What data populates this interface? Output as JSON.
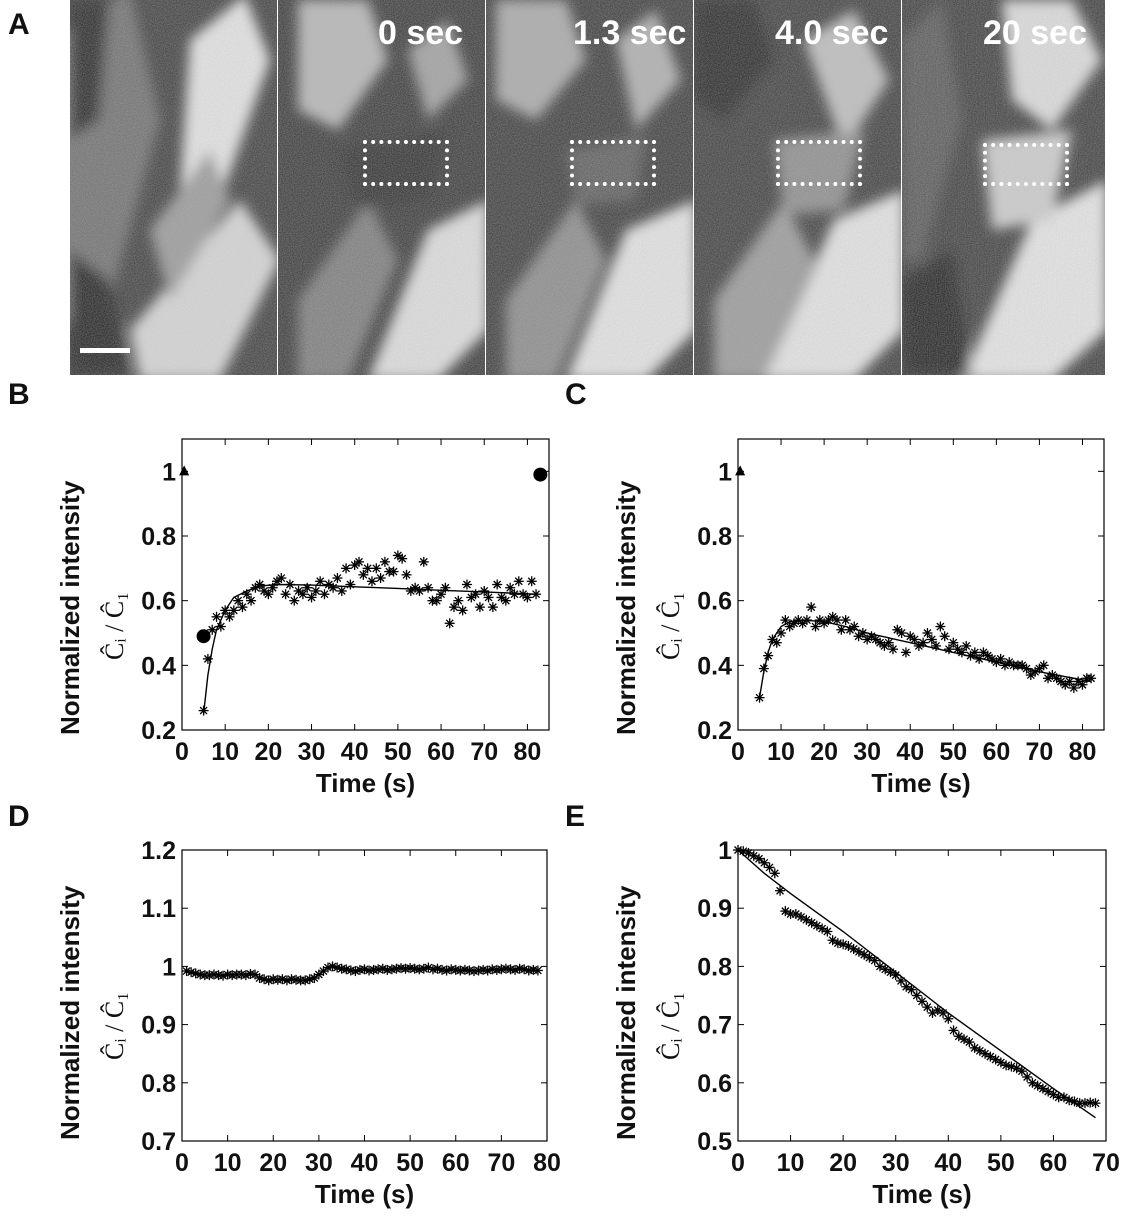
{
  "panels": {
    "a": "A",
    "b": "B",
    "c": "C",
    "d": "D",
    "e": "E"
  },
  "micrograph": {
    "time_labels": [
      "0 sec",
      "1.3 sec",
      "4.0 sec",
      "20 sec"
    ]
  },
  "common": {
    "xlabel": "Time (s)",
    "ylabel": "Normalized intensity",
    "yfraction": "Ĉᵢ / Ĉ₁"
  },
  "chart_data": [
    {
      "panel": "B",
      "type": "scatter",
      "xlim": [
        0,
        85
      ],
      "ylim": [
        0.2,
        1.1
      ],
      "xticks": [
        0,
        10,
        20,
        30,
        40,
        50,
        60,
        70,
        80
      ],
      "yticks": [
        0.2,
        0.4,
        0.6,
        0.8,
        1
      ],
      "markers": {
        "triangle": [
          [
            0.5,
            1.0
          ]
        ],
        "circle": [
          [
            5,
            0.49
          ],
          [
            83,
            0.99
          ]
        ]
      },
      "points": [
        [
          5,
          0.26
        ],
        [
          6,
          0.42
        ],
        [
          7,
          0.51
        ],
        [
          8,
          0.55
        ],
        [
          9,
          0.52
        ],
        [
          10,
          0.57
        ],
        [
          11,
          0.55
        ],
        [
          12,
          0.57
        ],
        [
          13,
          0.6
        ],
        [
          14,
          0.58
        ],
        [
          15,
          0.62
        ],
        [
          16,
          0.6
        ],
        [
          17,
          0.64
        ],
        [
          18,
          0.65
        ],
        [
          19,
          0.63
        ],
        [
          20,
          0.62
        ],
        [
          21,
          0.64
        ],
        [
          22,
          0.66
        ],
        [
          23,
          0.67
        ],
        [
          24,
          0.62
        ],
        [
          25,
          0.65
        ],
        [
          26,
          0.6
        ],
        [
          27,
          0.63
        ],
        [
          28,
          0.62
        ],
        [
          29,
          0.64
        ],
        [
          30,
          0.61
        ],
        [
          31,
          0.63
        ],
        [
          32,
          0.66
        ],
        [
          33,
          0.62
        ],
        [
          34,
          0.65
        ],
        [
          35,
          0.64
        ],
        [
          36,
          0.67
        ],
        [
          37,
          0.63
        ],
        [
          38,
          0.7
        ],
        [
          39,
          0.65
        ],
        [
          40,
          0.71
        ],
        [
          41,
          0.72
        ],
        [
          42,
          0.68
        ],
        [
          43,
          0.7
        ],
        [
          44,
          0.66
        ],
        [
          45,
          0.7
        ],
        [
          46,
          0.67
        ],
        [
          47,
          0.72
        ],
        [
          48,
          0.69
        ],
        [
          49,
          0.69
        ],
        [
          50,
          0.74
        ],
        [
          51,
          0.73
        ],
        [
          52,
          0.68
        ],
        [
          53,
          0.63
        ],
        [
          54,
          0.64
        ],
        [
          55,
          0.63
        ],
        [
          56,
          0.72
        ],
        [
          57,
          0.64
        ],
        [
          58,
          0.6
        ],
        [
          59,
          0.6
        ],
        [
          60,
          0.62
        ],
        [
          61,
          0.64
        ],
        [
          62,
          0.53
        ],
        [
          63,
          0.58
        ],
        [
          64,
          0.6
        ],
        [
          65,
          0.57
        ],
        [
          66,
          0.65
        ],
        [
          67,
          0.61
        ],
        [
          68,
          0.62
        ],
        [
          69,
          0.58
        ],
        [
          70,
          0.63
        ],
        [
          71,
          0.61
        ],
        [
          72,
          0.58
        ],
        [
          73,
          0.65
        ],
        [
          74,
          0.61
        ],
        [
          75,
          0.6
        ],
        [
          76,
          0.64
        ],
        [
          77,
          0.62
        ],
        [
          78,
          0.66
        ],
        [
          79,
          0.62
        ],
        [
          80,
          0.61
        ],
        [
          81,
          0.66
        ],
        [
          82,
          0.62
        ]
      ],
      "fit": [
        [
          5,
          0.25
        ],
        [
          6,
          0.37
        ],
        [
          7,
          0.45
        ],
        [
          8,
          0.51
        ],
        [
          10,
          0.57
        ],
        [
          12,
          0.61
        ],
        [
          15,
          0.63
        ],
        [
          18,
          0.645
        ],
        [
          22,
          0.65
        ],
        [
          30,
          0.648
        ],
        [
          40,
          0.643
        ],
        [
          50,
          0.638
        ],
        [
          60,
          0.632
        ],
        [
          70,
          0.627
        ],
        [
          82,
          0.62
        ]
      ]
    },
    {
      "panel": "C",
      "type": "scatter",
      "xlim": [
        0,
        85
      ],
      "ylim": [
        0.2,
        1.1
      ],
      "xticks": [
        0,
        10,
        20,
        30,
        40,
        50,
        60,
        70,
        80
      ],
      "yticks": [
        0.2,
        0.4,
        0.6,
        0.8,
        1
      ],
      "markers": {
        "triangle": [
          [
            0.5,
            1.0
          ]
        ]
      },
      "points": [
        [
          5,
          0.3
        ],
        [
          6,
          0.39
        ],
        [
          7,
          0.43
        ],
        [
          8,
          0.48
        ],
        [
          9,
          0.47
        ],
        [
          10,
          0.5
        ],
        [
          11,
          0.54
        ],
        [
          12,
          0.52
        ],
        [
          13,
          0.53
        ],
        [
          14,
          0.54
        ],
        [
          15,
          0.53
        ],
        [
          16,
          0.54
        ],
        [
          17,
          0.58
        ],
        [
          18,
          0.52
        ],
        [
          19,
          0.54
        ],
        [
          20,
          0.53
        ],
        [
          21,
          0.54
        ],
        [
          22,
          0.55
        ],
        [
          23,
          0.54
        ],
        [
          24,
          0.51
        ],
        [
          25,
          0.54
        ],
        [
          26,
          0.51
        ],
        [
          27,
          0.52
        ],
        [
          28,
          0.49
        ],
        [
          29,
          0.5
        ],
        [
          30,
          0.48
        ],
        [
          31,
          0.49
        ],
        [
          32,
          0.48
        ],
        [
          33,
          0.47
        ],
        [
          34,
          0.46
        ],
        [
          35,
          0.47
        ],
        [
          36,
          0.45
        ],
        [
          37,
          0.51
        ],
        [
          38,
          0.5
        ],
        [
          39,
          0.44
        ],
        [
          40,
          0.49
        ],
        [
          41,
          0.48
        ],
        [
          42,
          0.46
        ],
        [
          43,
          0.47
        ],
        [
          44,
          0.5
        ],
        [
          45,
          0.48
        ],
        [
          46,
          0.46
        ],
        [
          47,
          0.52
        ],
        [
          48,
          0.49
        ],
        [
          49,
          0.45
        ],
        [
          50,
          0.47
        ],
        [
          51,
          0.45
        ],
        [
          52,
          0.44
        ],
        [
          53,
          0.46
        ],
        [
          54,
          0.43
        ],
        [
          55,
          0.44
        ],
        [
          56,
          0.42
        ],
        [
          57,
          0.44
        ],
        [
          58,
          0.43
        ],
        [
          59,
          0.42
        ],
        [
          60,
          0.41
        ],
        [
          61,
          0.42
        ],
        [
          62,
          0.4
        ],
        [
          63,
          0.41
        ],
        [
          64,
          0.4
        ],
        [
          65,
          0.4
        ],
        [
          66,
          0.4
        ],
        [
          67,
          0.39
        ],
        [
          68,
          0.37
        ],
        [
          69,
          0.38
        ],
        [
          70,
          0.39
        ],
        [
          71,
          0.4
        ],
        [
          72,
          0.36
        ],
        [
          73,
          0.37
        ],
        [
          74,
          0.36
        ],
        [
          75,
          0.35
        ],
        [
          76,
          0.34
        ],
        [
          77,
          0.35
        ],
        [
          78,
          0.33
        ],
        [
          79,
          0.35
        ],
        [
          80,
          0.34
        ],
        [
          81,
          0.36
        ],
        [
          82,
          0.36
        ]
      ],
      "fit": [
        [
          5,
          0.3
        ],
        [
          6,
          0.38
        ],
        [
          7,
          0.44
        ],
        [
          8,
          0.48
        ],
        [
          10,
          0.52
        ],
        [
          12,
          0.535
        ],
        [
          15,
          0.54
        ],
        [
          20,
          0.535
        ],
        [
          25,
          0.52
        ],
        [
          30,
          0.5
        ],
        [
          40,
          0.47
        ],
        [
          50,
          0.44
        ],
        [
          60,
          0.41
        ],
        [
          70,
          0.38
        ],
        [
          82,
          0.35
        ]
      ]
    },
    {
      "panel": "D",
      "type": "scatter",
      "xlim": [
        0,
        80
      ],
      "ylim": [
        0.7,
        1.2
      ],
      "xticks": [
        0,
        10,
        20,
        30,
        40,
        50,
        60,
        70,
        80
      ],
      "yticks": [
        0.7,
        0.8,
        0.9,
        1,
        1.1,
        1.2
      ],
      "points": [
        [
          1,
          0.992
        ],
        [
          2,
          0.99
        ],
        [
          3,
          0.988
        ],
        [
          4,
          0.986
        ],
        [
          5,
          0.985
        ],
        [
          6,
          0.985
        ],
        [
          7,
          0.986
        ],
        [
          8,
          0.985
        ],
        [
          9,
          0.984
        ],
        [
          10,
          0.986
        ],
        [
          11,
          0.985
        ],
        [
          12,
          0.986
        ],
        [
          13,
          0.986
        ],
        [
          14,
          0.985
        ],
        [
          15,
          0.987
        ],
        [
          16,
          0.986
        ],
        [
          17,
          0.98
        ],
        [
          18,
          0.978
        ],
        [
          19,
          0.976
        ],
        [
          20,
          0.978
        ],
        [
          21,
          0.977
        ],
        [
          22,
          0.978
        ],
        [
          23,
          0.976
        ],
        [
          24,
          0.978
        ],
        [
          25,
          0.977
        ],
        [
          26,
          0.976
        ],
        [
          27,
          0.976
        ],
        [
          28,
          0.978
        ],
        [
          29,
          0.98
        ],
        [
          30,
          0.986
        ],
        [
          31,
          0.992
        ],
        [
          32,
          0.998
        ],
        [
          33,
          1.0
        ],
        [
          34,
          0.998
        ],
        [
          35,
          0.996
        ],
        [
          36,
          0.995
        ],
        [
          37,
          0.993
        ],
        [
          38,
          0.992
        ],
        [
          39,
          0.994
        ],
        [
          40,
          0.995
        ],
        [
          41,
          0.993
        ],
        [
          42,
          0.994
        ],
        [
          43,
          0.995
        ],
        [
          44,
          0.996
        ],
        [
          45,
          0.994
        ],
        [
          46,
          0.995
        ],
        [
          47,
          0.996
        ],
        [
          48,
          0.997
        ],
        [
          49,
          0.996
        ],
        [
          50,
          0.997
        ],
        [
          51,
          0.996
        ],
        [
          52,
          0.995
        ],
        [
          53,
          0.996
        ],
        [
          54,
          0.998
        ],
        [
          55,
          0.995
        ],
        [
          56,
          0.996
        ],
        [
          57,
          0.994
        ],
        [
          58,
          0.993
        ],
        [
          59,
          0.995
        ],
        [
          60,
          0.994
        ],
        [
          61,
          0.993
        ],
        [
          62,
          0.994
        ],
        [
          63,
          0.993
        ],
        [
          64,
          0.992
        ],
        [
          65,
          0.993
        ],
        [
          66,
          0.994
        ],
        [
          67,
          0.993
        ],
        [
          68,
          0.995
        ],
        [
          69,
          0.994
        ],
        [
          70,
          0.995
        ],
        [
          71,
          0.996
        ],
        [
          72,
          0.995
        ],
        [
          73,
          0.994
        ],
        [
          74,
          0.996
        ],
        [
          75,
          0.995
        ],
        [
          76,
          0.993
        ],
        [
          77,
          0.994
        ],
        [
          78,
          0.993
        ]
      ]
    },
    {
      "panel": "E",
      "type": "scatter",
      "xlim": [
        0,
        70
      ],
      "ylim": [
        0.5,
        1.0
      ],
      "xticks": [
        0,
        10,
        20,
        30,
        40,
        50,
        60,
        70
      ],
      "yticks": [
        0.5,
        0.6,
        0.7,
        0.8,
        0.9,
        1
      ],
      "points": [
        [
          0,
          1.0
        ],
        [
          1,
          0.998
        ],
        [
          2,
          0.995
        ],
        [
          3,
          0.99
        ],
        [
          4,
          0.985
        ],
        [
          5,
          0.978
        ],
        [
          6,
          0.97
        ],
        [
          7,
          0.96
        ],
        [
          8,
          0.93
        ],
        [
          9,
          0.895
        ],
        [
          10,
          0.89
        ],
        [
          11,
          0.89
        ],
        [
          12,
          0.885
        ],
        [
          13,
          0.88
        ],
        [
          14,
          0.875
        ],
        [
          15,
          0.87
        ],
        [
          16,
          0.865
        ],
        [
          17,
          0.86
        ],
        [
          18,
          0.845
        ],
        [
          19,
          0.84
        ],
        [
          20,
          0.838
        ],
        [
          21,
          0.835
        ],
        [
          22,
          0.83
        ],
        [
          23,
          0.825
        ],
        [
          24,
          0.82
        ],
        [
          25,
          0.815
        ],
        [
          26,
          0.81
        ],
        [
          27,
          0.8
        ],
        [
          28,
          0.795
        ],
        [
          29,
          0.79
        ],
        [
          30,
          0.785
        ],
        [
          31,
          0.775
        ],
        [
          32,
          0.765
        ],
        [
          33,
          0.76
        ],
        [
          34,
          0.75
        ],
        [
          35,
          0.74
        ],
        [
          36,
          0.73
        ],
        [
          37,
          0.72
        ],
        [
          38,
          0.725
        ],
        [
          39,
          0.72
        ],
        [
          40,
          0.71
        ],
        [
          41,
          0.69
        ],
        [
          42,
          0.68
        ],
        [
          43,
          0.675
        ],
        [
          44,
          0.67
        ],
        [
          45,
          0.66
        ],
        [
          46,
          0.655
        ],
        [
          47,
          0.65
        ],
        [
          48,
          0.645
        ],
        [
          49,
          0.64
        ],
        [
          50,
          0.635
        ],
        [
          51,
          0.63
        ],
        [
          52,
          0.628
        ],
        [
          53,
          0.625
        ],
        [
          54,
          0.62
        ],
        [
          55,
          0.61
        ],
        [
          56,
          0.6
        ],
        [
          57,
          0.595
        ],
        [
          58,
          0.59
        ],
        [
          59,
          0.585
        ],
        [
          60,
          0.58
        ],
        [
          61,
          0.575
        ],
        [
          62,
          0.575
        ],
        [
          63,
          0.57
        ],
        [
          64,
          0.568
        ],
        [
          65,
          0.565
        ],
        [
          66,
          0.565
        ],
        [
          67,
          0.566
        ],
        [
          68,
          0.565
        ]
      ],
      "fit": [
        [
          0,
          1.0
        ],
        [
          5,
          0.96
        ],
        [
          10,
          0.925
        ],
        [
          20,
          0.86
        ],
        [
          30,
          0.79
        ],
        [
          40,
          0.72
        ],
        [
          50,
          0.655
        ],
        [
          60,
          0.59
        ],
        [
          68,
          0.54
        ]
      ]
    }
  ]
}
